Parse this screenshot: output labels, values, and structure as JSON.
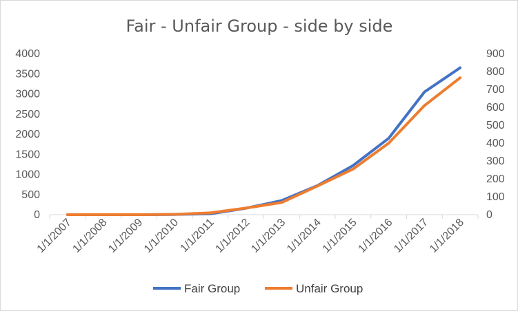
{
  "chart_data": {
    "type": "line",
    "title": "Fair - Unfair Group - side by side",
    "categories": [
      "1/1/2007",
      "1/1/2008",
      "1/1/2009",
      "1/1/2010",
      "1/1/2011",
      "1/1/2012",
      "1/1/2013",
      "1/1/2014",
      "1/1/2015",
      "1/1/2016",
      "1/1/2017",
      "1/1/2018"
    ],
    "series": [
      {
        "name": "Fair Group",
        "axis": "left",
        "color": "#4472c4",
        "values": [
          0,
          0,
          0,
          5,
          20,
          160,
          350,
          720,
          1220,
          1900,
          3050,
          3650
        ]
      },
      {
        "name": "Unfair Group",
        "axis": "right",
        "color": "#ed7d31",
        "values": [
          0,
          0,
          0,
          2,
          10,
          37,
          68,
          160,
          255,
          400,
          610,
          765
        ]
      }
    ],
    "y_left": {
      "min": 0,
      "max": 4000,
      "ticks": [
        "0",
        "500",
        "1000",
        "1500",
        "2000",
        "2500",
        "3000",
        "3500",
        "4000"
      ]
    },
    "y_right": {
      "min": 0,
      "max": 900,
      "ticks": [
        "0",
        "100",
        "200",
        "300",
        "400",
        "500",
        "600",
        "700",
        "800",
        "900"
      ]
    },
    "grid": false,
    "legend_position": "bottom"
  }
}
